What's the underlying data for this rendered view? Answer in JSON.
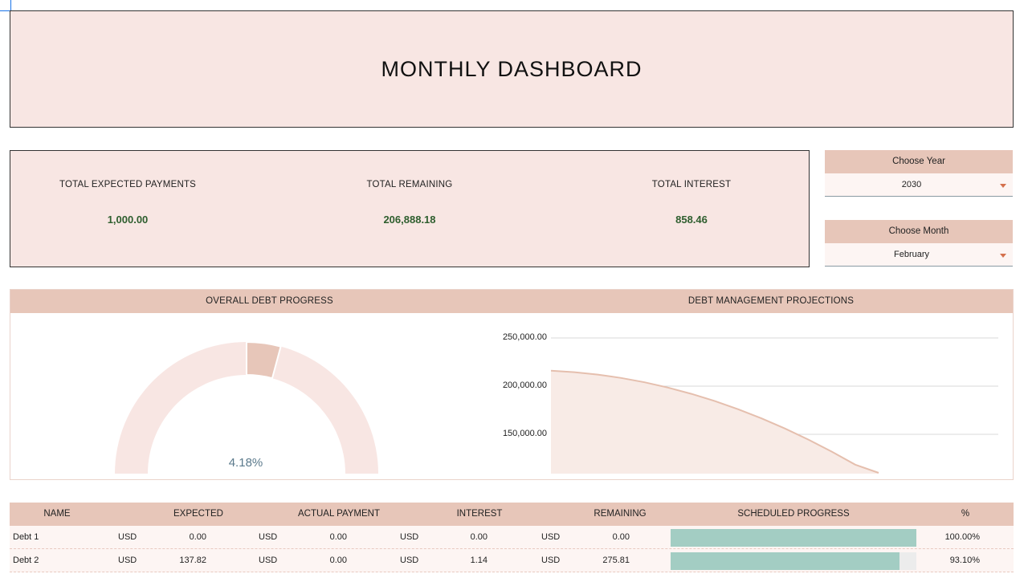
{
  "header": {
    "title": "MONTHLY DASHBOARD"
  },
  "summary": {
    "expected_label": "TOTAL EXPECTED PAYMENTS",
    "expected_value": "1,000.00",
    "remaining_label": "TOTAL REMAINING",
    "remaining_value": "206,888.18",
    "interest_label": "TOTAL INTEREST",
    "interest_value": "858.46"
  },
  "filters": {
    "year_label": "Choose Year",
    "year_value": "2030",
    "month_label": "Choose Month",
    "month_value": "February"
  },
  "progress_chart": {
    "title": "OVERALL DEBT PROGRESS",
    "percent_label": "4.18%",
    "fraction": 0.0418
  },
  "projection_chart": {
    "title": "DEBT MANAGEMENT PROJECTIONS",
    "y_ticks": [
      "250,000.00",
      "200,000.00",
      "150,000.00"
    ]
  },
  "chart_data": [
    {
      "type": "pie",
      "title": "OVERALL DEBT PROGRESS",
      "values": [
        4.18,
        95.82
      ],
      "annotation": "4.18%"
    },
    {
      "type": "area",
      "title": "DEBT MANAGEMENT PROJECTIONS",
      "ylim": [
        110000,
        262000
      ],
      "y_ticks": [
        250000,
        200000,
        150000
      ],
      "grid": true,
      "series": [
        {
          "values": [
            216000,
            214500,
            212000,
            208500,
            204000,
            198500,
            192000,
            184500,
            176000,
            166500,
            156000,
            144500,
            132000,
            118500,
            110000
          ]
        }
      ]
    }
  ],
  "table": {
    "headers": {
      "name": "NAME",
      "expected": "EXPECTED",
      "actual": "ACTUAL PAYMENT",
      "interest": "INTEREST",
      "remaining": "REMAINING",
      "progress": "SCHEDULED PROGRESS",
      "percent": "%"
    },
    "rows": [
      {
        "name": "Debt 1",
        "cur1": "USD",
        "expected": "0.00",
        "cur2": "USD",
        "actual": "0.00",
        "cur3": "USD",
        "interest": "0.00",
        "cur4": "USD",
        "remaining": "0.00",
        "percent": "100.00%",
        "progress_fraction": 1.0
      },
      {
        "name": "Debt 2",
        "cur1": "USD",
        "expected": "137.82",
        "cur2": "USD",
        "actual": "0.00",
        "cur3": "USD",
        "interest": "1.14",
        "cur4": "USD",
        "remaining": "275.81",
        "percent": "93.10%",
        "progress_fraction": 0.931
      }
    ]
  },
  "colors": {
    "header_bg": "#f8e6e3",
    "band_bg": "#e7c6b9",
    "value_green": "#2e5e2e",
    "progress_teal": "#a3cdc3",
    "caret": "#d4714e"
  }
}
